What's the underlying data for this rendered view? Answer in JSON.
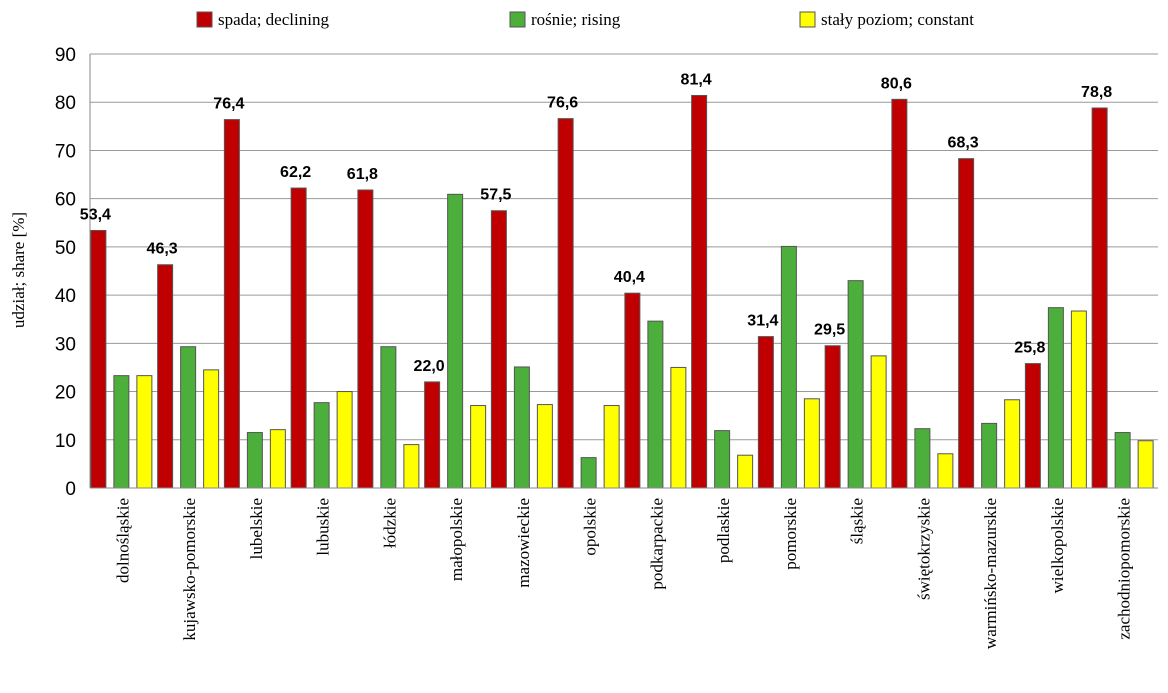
{
  "chart_data": {
    "type": "bar",
    "ylabel": "udział; share [%]",
    "ylim": [
      0,
      90
    ],
    "yticks": [
      0,
      10,
      20,
      30,
      40,
      50,
      60,
      70,
      80,
      90
    ],
    "grid": true,
    "legend_position": "top",
    "categories": [
      "dolnośląskie",
      "kujawsko-pomorskie",
      "lubelskie",
      "lubuskie",
      "łódzkie",
      "małopolskie",
      "mazowieckie",
      "opolskie",
      "podkarpackie",
      "podlaskie",
      "pomorskie",
      "śląskie",
      "świętokrzyskie",
      "warmińsko-mazurskie",
      "wielkopolskie",
      "zachodniopomorskie"
    ],
    "series": [
      {
        "name": "spada; declining",
        "color": "#C00000",
        "values": [
          53.4,
          46.3,
          76.4,
          62.2,
          61.8,
          22.0,
          57.5,
          76.6,
          40.4,
          81.4,
          31.4,
          29.5,
          80.6,
          68.3,
          25.8,
          78.8
        ]
      },
      {
        "name": "rośnie; rising",
        "color": "#4CAF3C",
        "values": [
          23.3,
          29.3,
          11.5,
          17.7,
          29.3,
          60.9,
          25.1,
          6.3,
          34.6,
          11.9,
          50.1,
          43.0,
          12.3,
          13.4,
          37.4,
          11.5
        ]
      },
      {
        "name": "stały poziom; constant",
        "color": "#FFFF00",
        "values": [
          23.3,
          24.5,
          12.1,
          20.0,
          9.0,
          17.1,
          17.3,
          17.1,
          25.0,
          6.8,
          18.5,
          27.4,
          7.1,
          18.3,
          36.7,
          9.8
        ]
      }
    ],
    "data_labels": [
      "53,4",
      "46,3",
      "76,4",
      "62,2",
      "61,8",
      "22,0",
      "57,5",
      "76,6",
      "40,4",
      "81,4",
      "31,4",
      "29,5",
      "80,6",
      "68,3",
      "25,8",
      "78,8"
    ]
  }
}
